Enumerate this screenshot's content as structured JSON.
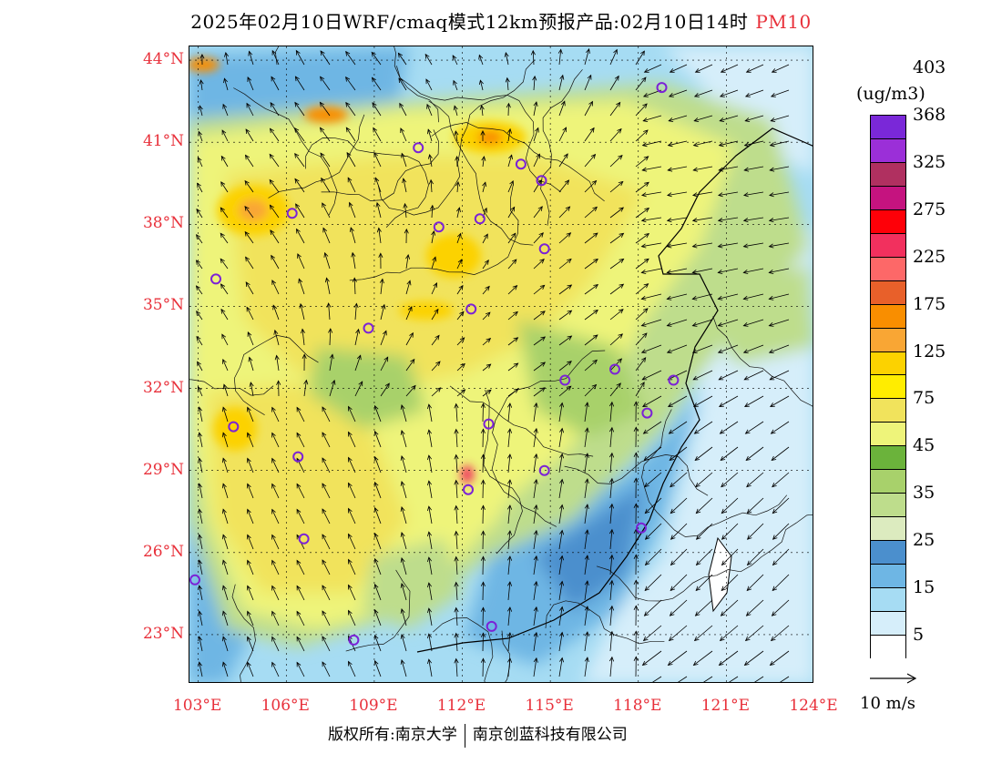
{
  "title": {
    "main": "2025年02月10日WRF/cmaq模式12km预报产品:02月10日14时",
    "pollutant": "PM10"
  },
  "map": {
    "lat_labels": [
      "44°N",
      "41°N",
      "38°N",
      "35°N",
      "32°N",
      "29°N",
      "26°N",
      "23°N"
    ],
    "lon_labels": [
      "103°E",
      "106°E",
      "109°E",
      "112°E",
      "115°E",
      "118°E",
      "121°E",
      "124°E"
    ],
    "lat_values": [
      44,
      41,
      38,
      35,
      32,
      29,
      26,
      23
    ],
    "lon_values": [
      103,
      106,
      109,
      112,
      115,
      118,
      121,
      124
    ],
    "lon_range": [
      102.7,
      124
    ],
    "lat_range": [
      21.2,
      44.5
    ],
    "city_markers": [
      [
        118.8,
        43.0
      ],
      [
        110.5,
        40.8
      ],
      [
        114.0,
        40.2
      ],
      [
        114.7,
        39.6
      ],
      [
        106.2,
        38.4
      ],
      [
        111.2,
        37.9
      ],
      [
        112.6,
        38.2
      ],
      [
        114.8,
        37.1
      ],
      [
        103.6,
        36.0
      ],
      [
        112.3,
        34.9
      ],
      [
        108.8,
        34.2
      ],
      [
        117.2,
        32.7
      ],
      [
        115.5,
        32.3
      ],
      [
        119.2,
        32.3
      ],
      [
        118.3,
        31.1
      ],
      [
        104.2,
        30.6
      ],
      [
        112.9,
        30.7
      ],
      [
        106.4,
        29.5
      ],
      [
        114.8,
        29.0
      ],
      [
        112.2,
        28.3
      ],
      [
        106.6,
        26.5
      ],
      [
        118.1,
        26.9
      ],
      [
        102.7,
        25.0
      ],
      [
        108.3,
        22.8
      ],
      [
        113.0,
        23.3
      ]
    ]
  },
  "colorbar": {
    "unit": "(ug/m3)",
    "colors": [
      "#ffffff",
      "#d6eefa",
      "#a6dcf3",
      "#6eb6e4",
      "#4b8fcd",
      "#dcebbf",
      "#bedd8c",
      "#a8d16b",
      "#6bb33b",
      "#eef47a",
      "#f1e35c",
      "#ffed00",
      "#fcd200",
      "#f9a634",
      "#f98e00",
      "#e8602a",
      "#fd6868",
      "#f2305e",
      "#fe0008",
      "#c5137f",
      "#b03060",
      "#9b2fd8",
      "#7a28d8"
    ],
    "labels": [
      "5",
      "15",
      "25",
      "35",
      "45",
      "75",
      "125",
      "175",
      "225",
      "275",
      "325",
      "368",
      "403"
    ]
  },
  "wind_key": {
    "label": "10 m/s"
  },
  "footer": {
    "rights": "版权所有:南京大学",
    "company": "南京创蓝科技有限公司"
  }
}
